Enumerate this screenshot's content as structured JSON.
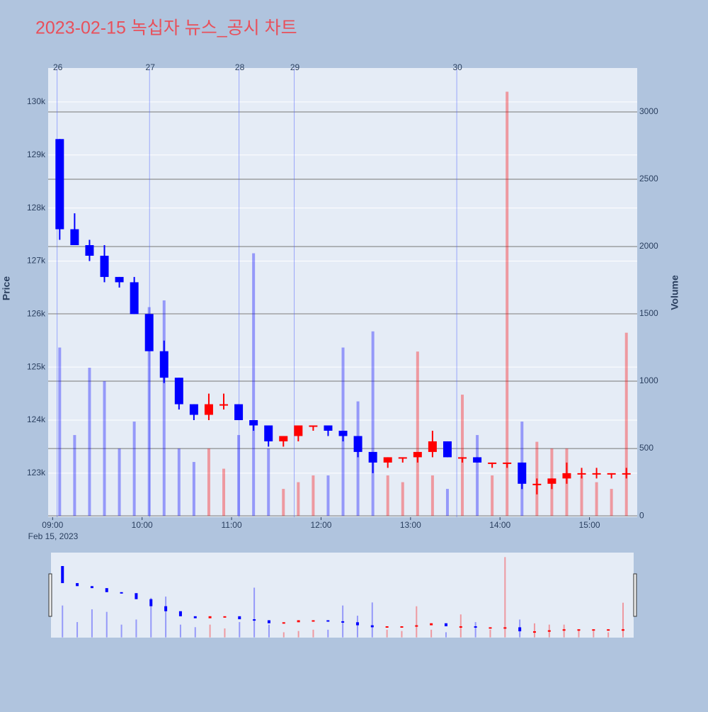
{
  "chart_data": {
    "type": "candlestick",
    "title": "2023-02-15 녹십자 뉴스_공시 차트",
    "x_axis_date_label": "Feb 15, 2023",
    "y_axis_label": "Price",
    "y2_axis_label": "Volume",
    "increasing_color": "#ff0000",
    "decreasing_color": "#0000ff",
    "x": [
      "09:00",
      "09:10",
      "09:20",
      "09:30",
      "09:40",
      "09:50",
      "10:00",
      "10:10",
      "10:20",
      "10:30",
      "10:40",
      "10:50",
      "11:00",
      "11:10",
      "11:20",
      "11:30",
      "11:40",
      "11:50",
      "12:00",
      "12:10",
      "12:20",
      "12:30",
      "12:40",
      "12:50",
      "13:00",
      "13:10",
      "13:20",
      "13:30",
      "13:40",
      "13:50",
      "14:00",
      "14:10",
      "14:20",
      "14:30",
      "14:40",
      "14:50",
      "15:00",
      "15:10",
      "15:20"
    ],
    "open": [
      129300,
      127600,
      127300,
      127100,
      126700,
      126600,
      126000,
      125300,
      124800,
      124300,
      124100,
      124300,
      124300,
      124000,
      123900,
      123600,
      123700,
      123900,
      123900,
      123800,
      123700,
      123400,
      123200,
      123300,
      123300,
      123400,
      123600,
      123300,
      123300,
      123200,
      123200,
      123200,
      122800,
      122800,
      122900,
      123000,
      123000,
      123000,
      123000
    ],
    "high": [
      129300,
      127900,
      127400,
      127300,
      126700,
      126700,
      126000,
      125500,
      124800,
      124300,
      124500,
      124500,
      124300,
      124000,
      123900,
      123700,
      123900,
      123900,
      123900,
      123800,
      123700,
      123400,
      123300,
      123300,
      123400,
      123800,
      123600,
      123300,
      123300,
      123200,
      123200,
      123200,
      122900,
      122900,
      123200,
      123100,
      123100,
      123000,
      123100
    ],
    "low": [
      127400,
      127300,
      127000,
      126600,
      126500,
      126000,
      125300,
      124700,
      124200,
      124000,
      124000,
      124200,
      124000,
      123800,
      123500,
      123500,
      123600,
      123800,
      123700,
      123600,
      123300,
      123000,
      123100,
      123200,
      123200,
      123300,
      123300,
      123200,
      123200,
      123100,
      123100,
      122700,
      122600,
      122700,
      122800,
      122900,
      122900,
      122900,
      122900
    ],
    "close": [
      127600,
      127300,
      127100,
      126700,
      126600,
      126000,
      125300,
      124800,
      124300,
      124100,
      124300,
      124300,
      124000,
      123900,
      123600,
      123700,
      123900,
      123900,
      123800,
      123700,
      123400,
      123200,
      123300,
      123300,
      123400,
      123600,
      123300,
      123300,
      123200,
      123200,
      123200,
      122800,
      122800,
      122900,
      123000,
      123000,
      123000,
      123000,
      123000
    ],
    "volume": [
      1250,
      600,
      1100,
      1000,
      500,
      700,
      1550,
      1600,
      500,
      400,
      500,
      350,
      600,
      1950,
      500,
      200,
      250,
      300,
      300,
      1250,
      850,
      1370,
      300,
      250,
      1220,
      300,
      200,
      900,
      600,
      300,
      3150,
      700,
      550,
      500,
      500,
      300,
      250,
      200,
      1360
    ],
    "xlim": [
      "08:57",
      "15:32"
    ],
    "xticks": [
      "09:00",
      "10:00",
      "11:00",
      "12:00",
      "13:00",
      "14:00",
      "15:00"
    ],
    "ylim": [
      122170,
      130640
    ],
    "yticks": [
      {
        "value": 123000,
        "label": "123k"
      },
      {
        "value": 124000,
        "label": "124k"
      },
      {
        "value": 125000,
        "label": "125k"
      },
      {
        "value": 126000,
        "label": "126k"
      },
      {
        "value": 127000,
        "label": "127k"
      },
      {
        "value": 128000,
        "label": "128k"
      },
      {
        "value": 129000,
        "label": "129k"
      },
      {
        "value": 130000,
        "label": "130k"
      }
    ],
    "y2lim": [
      -10,
      3326
    ],
    "y2ticks": [
      0,
      500,
      1000,
      1500,
      2000,
      2500,
      3000
    ],
    "markers": [
      {
        "x": "09:03",
        "label": 26
      },
      {
        "x": "10:05",
        "label": 27
      },
      {
        "x": "11:05",
        "label": 28
      },
      {
        "x": "11:42",
        "label": 29
      },
      {
        "x": "13:31",
        "label": 30
      }
    ]
  }
}
